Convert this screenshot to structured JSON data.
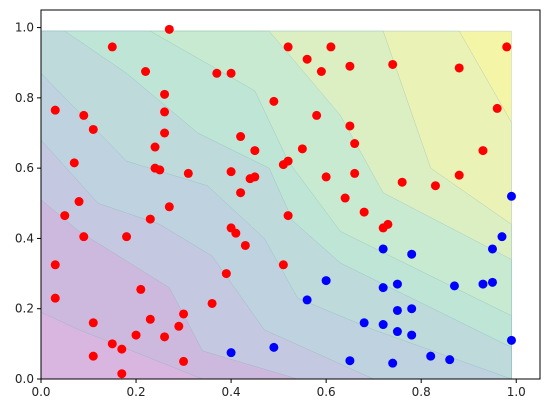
{
  "chart_data": {
    "type": "scatter",
    "title": "",
    "xlabel": "",
    "ylabel": "",
    "xlim": [
      0.0,
      1.05
    ],
    "ylim": [
      0.0,
      1.05
    ],
    "x_ticks": [
      "0.0",
      "0.2",
      "0.4",
      "0.6",
      "0.8",
      "1.0"
    ],
    "y_ticks": [
      "0.0",
      "0.2",
      "0.4",
      "0.6",
      "0.8",
      "1.0"
    ],
    "grid": false,
    "legend": "none",
    "background": "filled decision-boundary contours from purple (low) to yellow (high), alpha ~0.3",
    "contour_colors": [
      "#d8b6e0",
      "#cdb9dd",
      "#c4c8e0",
      "#bfd2e0",
      "#bedadb",
      "#bee5d6",
      "#c8ead0",
      "#dcefc3",
      "#eaf2b6",
      "#f5f5a8"
    ],
    "series": [
      {
        "color": "#ff0000",
        "points": [
          [
            0.27,
            0.995
          ],
          [
            0.15,
            0.945
          ],
          [
            0.52,
            0.945
          ],
          [
            0.61,
            0.945
          ],
          [
            0.98,
            0.945
          ],
          [
            0.56,
            0.91
          ],
          [
            0.74,
            0.895
          ],
          [
            0.65,
            0.89
          ],
          [
            0.88,
            0.885
          ],
          [
            0.22,
            0.875
          ],
          [
            0.37,
            0.87
          ],
          [
            0.4,
            0.87
          ],
          [
            0.59,
            0.875
          ],
          [
            0.26,
            0.81
          ],
          [
            0.49,
            0.79
          ],
          [
            0.03,
            0.765
          ],
          [
            0.96,
            0.77
          ],
          [
            0.26,
            0.76
          ],
          [
            0.09,
            0.75
          ],
          [
            0.58,
            0.75
          ],
          [
            0.65,
            0.72
          ],
          [
            0.11,
            0.71
          ],
          [
            0.26,
            0.7
          ],
          [
            0.42,
            0.69
          ],
          [
            0.66,
            0.67
          ],
          [
            0.24,
            0.66
          ],
          [
            0.45,
            0.65
          ],
          [
            0.93,
            0.65
          ],
          [
            0.55,
            0.655
          ],
          [
            0.52,
            0.62
          ],
          [
            0.07,
            0.615
          ],
          [
            0.51,
            0.61
          ],
          [
            0.24,
            0.6
          ],
          [
            0.25,
            0.595
          ],
          [
            0.4,
            0.59
          ],
          [
            0.31,
            0.585
          ],
          [
            0.66,
            0.585
          ],
          [
            0.88,
            0.58
          ],
          [
            0.44,
            0.57
          ],
          [
            0.6,
            0.575
          ],
          [
            0.45,
            0.575
          ],
          [
            0.76,
            0.56
          ],
          [
            0.83,
            0.55
          ],
          [
            0.42,
            0.53
          ],
          [
            0.64,
            0.515
          ],
          [
            0.08,
            0.505
          ],
          [
            0.27,
            0.49
          ],
          [
            0.68,
            0.475
          ],
          [
            0.05,
            0.465
          ],
          [
            0.23,
            0.455
          ],
          [
            0.52,
            0.465
          ],
          [
            0.73,
            0.44
          ],
          [
            0.72,
            0.43
          ],
          [
            0.4,
            0.43
          ],
          [
            0.41,
            0.415
          ],
          [
            0.09,
            0.405
          ],
          [
            0.18,
            0.405
          ],
          [
            0.43,
            0.38
          ],
          [
            0.03,
            0.325
          ],
          [
            0.51,
            0.325
          ],
          [
            0.39,
            0.3
          ],
          [
            0.21,
            0.255
          ],
          [
            0.03,
            0.23
          ],
          [
            0.36,
            0.215
          ],
          [
            0.3,
            0.185
          ],
          [
            0.11,
            0.16
          ],
          [
            0.29,
            0.15
          ],
          [
            0.23,
            0.17
          ],
          [
            0.26,
            0.12
          ],
          [
            0.2,
            0.125
          ],
          [
            0.15,
            0.1
          ],
          [
            0.17,
            0.085
          ],
          [
            0.11,
            0.065
          ],
          [
            0.3,
            0.05
          ],
          [
            0.17,
            0.015
          ]
        ]
      },
      {
        "color": "#0000ff",
        "points": [
          [
            0.99,
            0.52
          ],
          [
            0.97,
            0.405
          ],
          [
            0.95,
            0.37
          ],
          [
            0.72,
            0.37
          ],
          [
            0.78,
            0.355
          ],
          [
            0.6,
            0.28
          ],
          [
            0.75,
            0.27
          ],
          [
            0.87,
            0.265
          ],
          [
            0.93,
            0.27
          ],
          [
            0.95,
            0.275
          ],
          [
            0.72,
            0.26
          ],
          [
            0.56,
            0.225
          ],
          [
            0.78,
            0.2
          ],
          [
            0.75,
            0.195
          ],
          [
            0.68,
            0.16
          ],
          [
            0.72,
            0.155
          ],
          [
            0.75,
            0.135
          ],
          [
            0.78,
            0.125
          ],
          [
            0.99,
            0.11
          ],
          [
            0.49,
            0.09
          ],
          [
            0.4,
            0.075
          ],
          [
            0.82,
            0.065
          ],
          [
            0.86,
            0.055
          ],
          [
            0.65,
            0.052
          ],
          [
            0.74,
            0.045
          ]
        ]
      }
    ]
  }
}
